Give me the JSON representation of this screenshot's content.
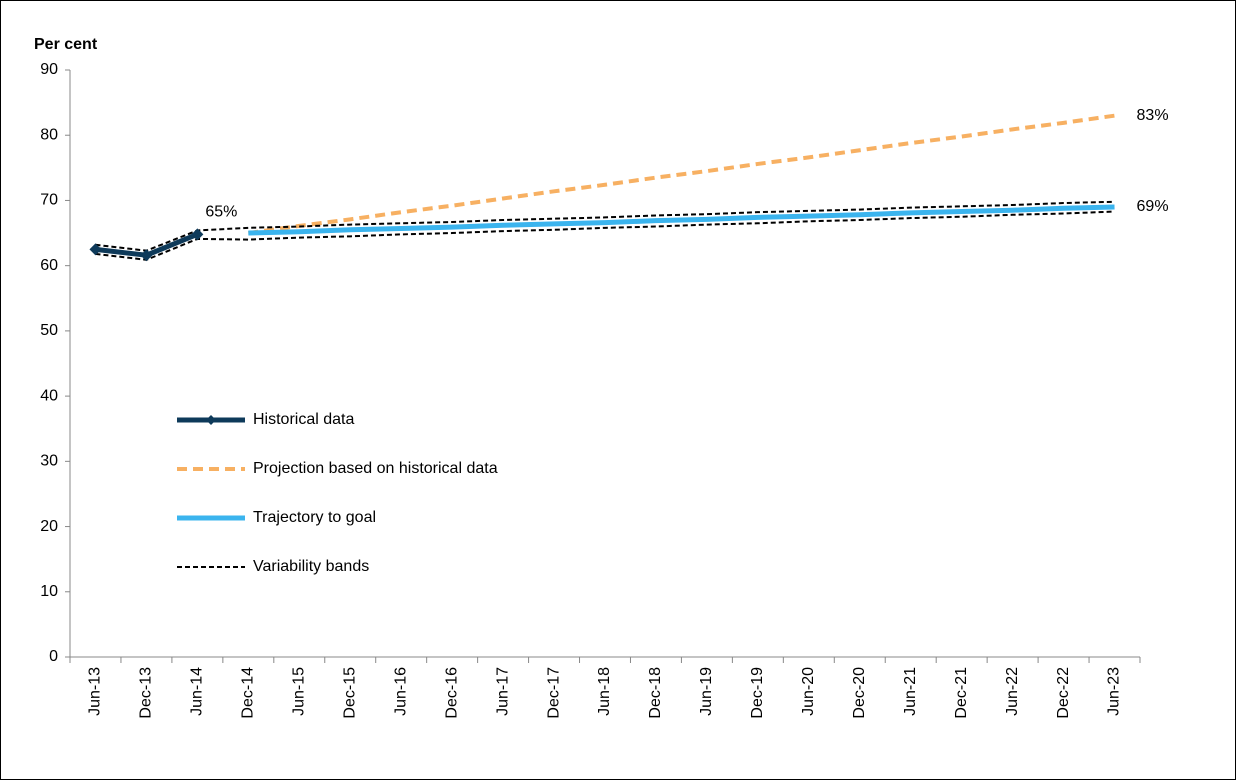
{
  "chart_data": {
    "type": "line",
    "y_label": "Per cent",
    "categories": [
      "Jun-13",
      "Dec-13",
      "Jun-14",
      "Dec-14",
      "Jun-15",
      "Dec-15",
      "Jun-16",
      "Dec-16",
      "Jun-17",
      "Dec-17",
      "Jun-18",
      "Dec-18",
      "Jun-19",
      "Dec-19",
      "Jun-20",
      "Dec-20",
      "Jun-21",
      "Dec-21",
      "Jun-22",
      "Dec-22",
      "Jun-23"
    ],
    "ylim": [
      0,
      90
    ],
    "yticks": [
      0,
      10,
      20,
      30,
      40,
      50,
      60,
      70,
      80,
      90
    ],
    "series": [
      {
        "name": "Historical data",
        "color": "#0e3a5a",
        "width": 5,
        "markers": true,
        "values": [
          62.5,
          61.6,
          64.8,
          null,
          null,
          null,
          null,
          null,
          null,
          null,
          null,
          null,
          null,
          null,
          null,
          null,
          null,
          null,
          null,
          null,
          null
        ],
        "value_labels": [
          null,
          null,
          "65%",
          null,
          null,
          null,
          null,
          null,
          null,
          null,
          null,
          null,
          null,
          null,
          null,
          null,
          null,
          null,
          null,
          null,
          null
        ]
      },
      {
        "name": "Projection based on historical data",
        "color": "#f7b062",
        "width": 4,
        "dashed": true,
        "values": [
          null,
          null,
          null,
          65,
          66.1,
          67.1,
          68.2,
          69.2,
          70.3,
          71.4,
          72.4,
          73.5,
          74.5,
          75.6,
          76.6,
          77.7,
          78.8,
          79.8,
          80.9,
          81.9,
          83
        ],
        "value_labels": [
          null,
          null,
          null,
          null,
          null,
          null,
          null,
          null,
          null,
          null,
          null,
          null,
          null,
          null,
          null,
          null,
          null,
          null,
          null,
          null,
          "83%"
        ]
      },
      {
        "name": "Trajectory to goal",
        "color": "#3bb4ee",
        "width": 5,
        "values": [
          null,
          null,
          null,
          65,
          65.2,
          65.5,
          65.7,
          65.9,
          66.2,
          66.4,
          66.6,
          66.9,
          67.1,
          67.4,
          67.6,
          67.8,
          68.1,
          68.3,
          68.5,
          68.8,
          69
        ],
        "value_labels": [
          null,
          null,
          null,
          null,
          null,
          null,
          null,
          null,
          null,
          null,
          null,
          null,
          null,
          null,
          null,
          null,
          null,
          null,
          null,
          null,
          "69%"
        ]
      },
      {
        "name": "Variability bands",
        "color": "#000000",
        "width": 2,
        "dashed": true,
        "values": [
          63.2,
          62.3,
          65.4,
          65.8,
          66,
          66.3,
          66.5,
          66.7,
          67,
          67.2,
          67.4,
          67.7,
          67.9,
          68.2,
          68.4,
          68.6,
          68.9,
          69.1,
          69.3,
          69.6,
          69.8
        ]
      },
      {
        "color": "#000000",
        "width": 2,
        "dashed": true,
        "values": [
          61.8,
          60.9,
          64.1,
          64,
          64.3,
          64.5,
          64.8,
          65,
          65.3,
          65.5,
          65.8,
          66,
          66.3,
          66.5,
          66.8,
          67,
          67.3,
          67.5,
          67.8,
          68,
          68.3
        ]
      }
    ]
  }
}
